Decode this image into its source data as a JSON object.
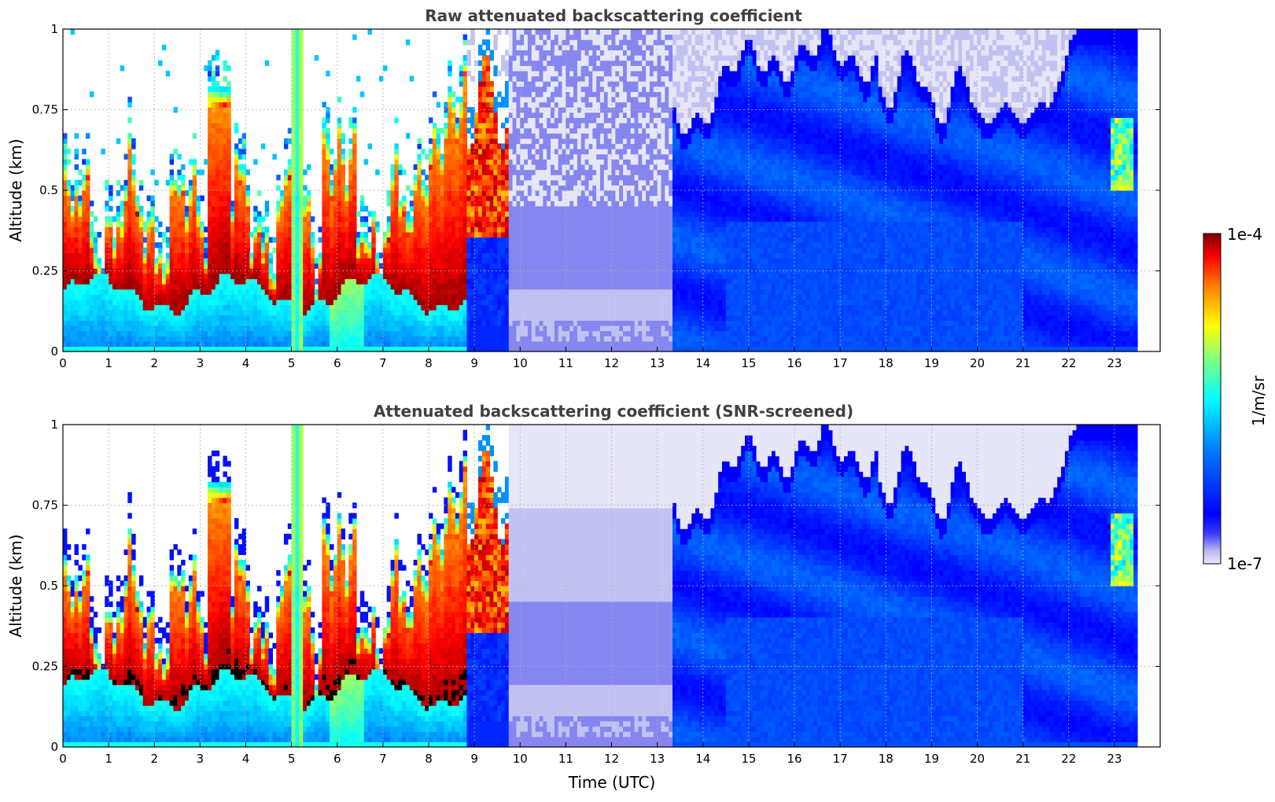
{
  "chart_data": [
    {
      "type": "heatmap",
      "title": "Raw attenuated backscattering coefficient",
      "xlabel": "",
      "ylabel": "Altitude (km)",
      "xlim": [
        0,
        24
      ],
      "ylim": [
        0,
        1
      ],
      "x_ticks": [
        "0",
        "1",
        "2",
        "3",
        "4",
        "5",
        "6",
        "7",
        "8",
        "9",
        "10",
        "11",
        "12",
        "13",
        "14",
        "15",
        "16",
        "17",
        "18",
        "19",
        "20",
        "21",
        "22",
        "23"
      ],
      "y_ticks": [
        "0",
        "0.25",
        "0.5",
        "0.75",
        "1"
      ],
      "grid": true,
      "data_end_time": 23.5,
      "color_scale": "log",
      "screened": false
    },
    {
      "type": "heatmap",
      "title": "Attenuated backscattering coefficient (SNR-screened)",
      "xlabel": "Time (UTC)",
      "ylabel": "Altitude (km)",
      "xlim": [
        0,
        24
      ],
      "ylim": [
        0,
        1
      ],
      "x_ticks": [
        "0",
        "1",
        "2",
        "3",
        "4",
        "5",
        "6",
        "7",
        "8",
        "9",
        "10",
        "11",
        "12",
        "13",
        "14",
        "15",
        "16",
        "17",
        "18",
        "19",
        "20",
        "21",
        "22",
        "23"
      ],
      "y_ticks": [
        "0",
        "0.25",
        "0.5",
        "0.75",
        "1"
      ],
      "grid": true,
      "data_end_time": 23.5,
      "color_scale": "log",
      "screened": true
    }
  ],
  "colorbar": {
    "label": "1/m/sr",
    "max_label": "1e-4",
    "min_label": "1e-7",
    "colormap": "jet",
    "min_color": "#e8e8f8",
    "max_color": "#7f0000"
  }
}
